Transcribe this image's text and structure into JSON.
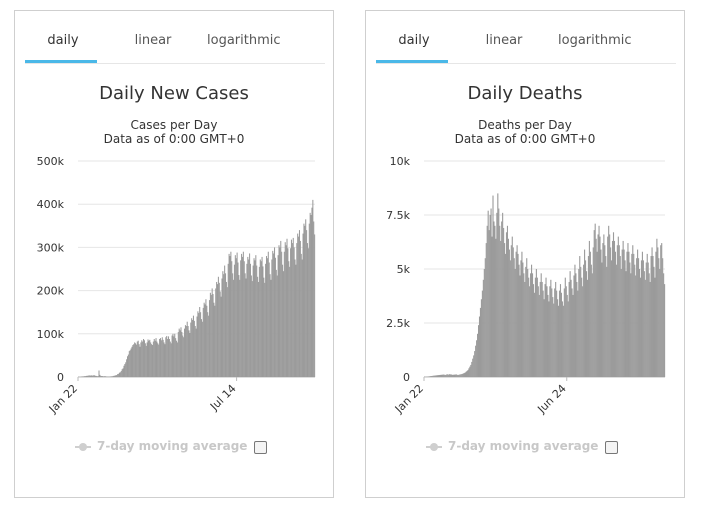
{
  "panels": [
    {
      "tabs": [
        "daily",
        "linear",
        "logarithmic"
      ],
      "active_tab": "daily",
      "chart_data": {
        "type": "bar",
        "title": "Daily New Cases",
        "subtitle_lines": [
          "Cases per Day",
          "Data as of 0:00 GMT+0"
        ],
        "x_start": "Jan 22",
        "x_end": "Oct 8",
        "x_ticks": [
          "Jan 22",
          "Jul 14"
        ],
        "y_ticks": [
          "0",
          "100k",
          "200k",
          "300k",
          "400k",
          "500k"
        ],
        "ylim": [
          0,
          500000
        ],
        "grid": true,
        "color": "#9b9b9b",
        "values": [
          600,
          300,
          500,
          600,
          1500,
          1200,
          1700,
          2000,
          2100,
          2600,
          2800,
          3200,
          3800,
          3200,
          3600,
          3700,
          3100,
          4000,
          3800,
          2800,
          2500,
          1900,
          2000,
          15000,
          5000,
          2500,
          2300,
          2100,
          1500,
          1800,
          1900,
          1300,
          1200,
          1000,
          1100,
          1200,
          1300,
          1500,
          1700,
          2500,
          2700,
          3500,
          4000,
          4500,
          7000,
          7500,
          10000,
          11000,
          14000,
          18000,
          20000,
          26000,
          30000,
          34000,
          41000,
          48000,
          52000,
          60000,
          62000,
          66000,
          70000,
          74000,
          76000,
          80000,
          78000,
          75000,
          82000,
          84000,
          76000,
          70000,
          80000,
          85000,
          82000,
          88000,
          85000,
          78000,
          72000,
          80000,
          87000,
          84000,
          86000,
          80000,
          76000,
          74000,
          82000,
          88000,
          84000,
          90000,
          82000,
          78000,
          75000,
          88000,
          90000,
          85000,
          92000,
          86000,
          80000,
          76000,
          92000,
          95000,
          88000,
          94000,
          88000,
          82000,
          78000,
          96000,
          100000,
          94000,
          100000,
          90000,
          84000,
          80000,
          104000,
          112000,
          108000,
          115000,
          104000,
          96000,
          92000,
          112000,
          120000,
          118000,
          128000,
          118000,
          108000,
          102000,
          126000,
          136000,
          132000,
          142000,
          130000,
          118000,
          112000,
          140000,
          152000,
          148000,
          162000,
          150000,
          134000,
          128000,
          160000,
          172000,
          168000,
          180000,
          165000,
          150000,
          142000,
          178000,
          195000,
          190000,
          205000,
          192000,
          172000,
          165000,
          205000,
          220000,
          215000,
          232000,
          218000,
          198000,
          186000,
          228000,
          245000,
          238000,
          258000,
          240000,
          220000,
          208000,
          262000,
          285000,
          280000,
          290000,
          268000,
          240000,
          225000,
          260000,
          282000,
          275000,
          288000,
          265000,
          236000,
          225000,
          270000,
          285000,
          278000,
          290000,
          268000,
          240000,
          228000,
          262000,
          278000,
          272000,
          286000,
          262000,
          235000,
          222000,
          258000,
          275000,
          270000,
          282000,
          258000,
          232000,
          220000,
          255000,
          272000,
          268000,
          278000,
          256000,
          230000,
          218000,
          262000,
          280000,
          275000,
          290000,
          265000,
          238000,
          225000,
          272000,
          292000,
          286000,
          300000,
          276000,
          248000,
          235000,
          282000,
          305000,
          300000,
          315000,
          290000,
          260000,
          245000,
          290000,
          312000,
          305000,
          320000,
          298000,
          268000,
          255000,
          298000,
          318000,
          310000,
          322000,
          300000,
          272000,
          260000,
          310000,
          332000,
          325000,
          340000,
          315000,
          285000,
          272000,
          332000,
          355000,
          350000,
          365000,
          340000,
          310000,
          298000,
          355000,
          380000,
          375000,
          392000,
          410000,
          360000,
          330000
        ]
      },
      "legend": {
        "label": "7-day moving average",
        "checked": false
      }
    },
    {
      "tabs": [
        "daily",
        "linear",
        "logarithmic"
      ],
      "active_tab": "daily",
      "chart_data": {
        "type": "bar",
        "title": "Daily Deaths",
        "subtitle_lines": [
          "Deaths per Day",
          "Data as of 0:00 GMT+0"
        ],
        "x_start": "Jan 22",
        "x_end": "Oct 8",
        "x_ticks": [
          "Jan 22",
          "Jun 24"
        ],
        "y_ticks": [
          "0",
          "2.5k",
          "5k",
          "7.5k",
          "10k"
        ],
        "ylim": [
          0,
          10000
        ],
        "grid": true,
        "color": "#9b9b9b",
        "values": [
          20,
          10,
          15,
          20,
          25,
          30,
          40,
          45,
          50,
          60,
          65,
          70,
          75,
          80,
          85,
          90,
          95,
          100,
          105,
          110,
          115,
          100,
          95,
          120,
          125,
          110,
          130,
          120,
          115,
          100,
          105,
          110,
          115,
          120,
          100,
          95,
          110,
          120,
          130,
          140,
          160,
          180,
          200,
          240,
          280,
          320,
          400,
          480,
          560,
          700,
          850,
          1000,
          1200,
          1450,
          1700,
          2000,
          2400,
          2800,
          3200,
          3600,
          4000,
          4500,
          5000,
          5500,
          6200,
          7000,
          7700,
          6800,
          7500,
          7800,
          6500,
          8400,
          7200,
          7000,
          6400,
          7600,
          8500,
          7800,
          7000,
          6300,
          7200,
          7600,
          6900,
          6200,
          5700,
          6700,
          7000,
          6400,
          5900,
          5400,
          6100,
          6500,
          6000,
          5500,
          5000,
          5800,
          6100,
          5700,
          5200,
          4700,
          5400,
          5800,
          5300,
          4800,
          4400,
          5100,
          5500,
          5000,
          4600,
          4200,
          4800,
          5200,
          4800,
          4300,
          3900,
          4600,
          5000,
          4600,
          4200,
          3800,
          4400,
          4800,
          4400,
          4000,
          3600,
          4300,
          4600,
          4200,
          3800,
          3500,
          4200,
          4500,
          4100,
          3700,
          3400,
          4100,
          4400,
          4000,
          3600,
          3300,
          4000,
          4300,
          3900,
          3500,
          3300,
          4100,
          4600,
          4200,
          3800,
          3500,
          4400,
          4900,
          4500,
          4100,
          3800,
          4700,
          5200,
          4800,
          4400,
          4000,
          5000,
          5600,
          5100,
          4600,
          4200,
          5200,
          5900,
          5400,
          4900,
          4500,
          5600,
          6300,
          5800,
          5200,
          4800,
          6000,
          6800,
          7100,
          6400,
          5800,
          6600,
          7000,
          6500,
          5900,
          5300,
          6200,
          6600,
          6100,
          5600,
          5100,
          6500,
          7000,
          6600,
          6000,
          5400,
          6300,
          6700,
          6300,
          5800,
          5200,
          6100,
          6500,
          6100,
          5600,
          5000,
          5900,
          6300,
          5900,
          5400,
          4900,
          5800,
          6200,
          5800,
          5300,
          4800,
          5700,
          6100,
          5700,
          5200,
          4700,
          5500,
          5900,
          5500,
          5000,
          4600,
          5400,
          5800,
          5400,
          4900,
          4500,
          5300,
          5700,
          5300,
          4800,
          4400,
          5600,
          6000,
          5600,
          5100,
          4600,
          5800,
          6400,
          6000,
          5500,
          5000,
          6100,
          6200,
          5500,
          4800,
          4300
        ]
      },
      "legend": {
        "label": "7-day moving average",
        "checked": false
      }
    }
  ]
}
